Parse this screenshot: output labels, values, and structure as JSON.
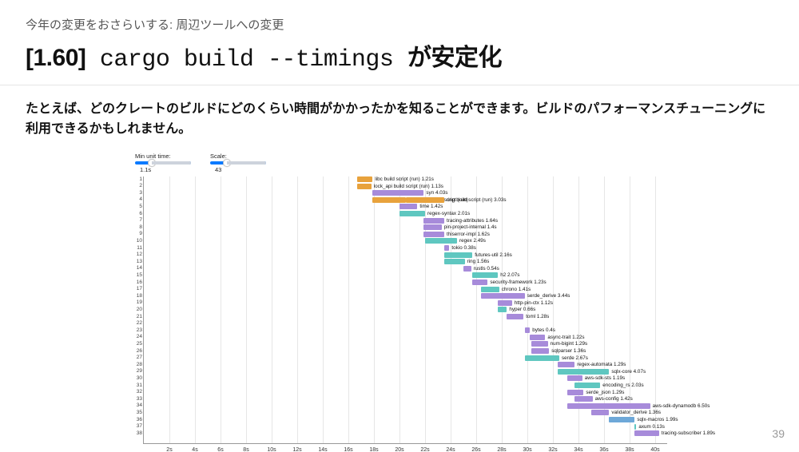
{
  "header": {
    "section": "今年の変更をおさらいする: 周辺ツールへの変更",
    "version": "[1.60]",
    "command": " cargo build --timings ",
    "suffix": "が安定化"
  },
  "lead": "たとえば、どのクレートのビルドにどのくらい時間がかかったかを知ることができます。ビルドのパフォーマンスチューニングに利用できるかもしれません。",
  "page_number": "39",
  "controls": {
    "min_unit_label": "Min unit time:",
    "min_unit_value": "1.1s",
    "scale_label": "Scale:",
    "scale_value": "43"
  },
  "colors": {
    "orange": "#e8a23c",
    "purple": "#a78bda",
    "teal": "#5fc7c0",
    "blue": "#6ea8d8",
    "grid": "#e6e6e6"
  },
  "x_axis": {
    "ticks": [
      "2s",
      "4s",
      "6s",
      "8s",
      "10s",
      "12s",
      "14s",
      "16s",
      "18s",
      "20s",
      "22s",
      "24s",
      "26s",
      "28s",
      "30s",
      "32s",
      "34s",
      "36s",
      "38s",
      "40s"
    ],
    "max": 41
  },
  "rows": [
    {
      "n": 1,
      "bars": [
        {
          "start": 16.7,
          "dur": 1.2,
          "color": "orange",
          "label": "libc build script (run) 1.21s"
        }
      ]
    },
    {
      "n": 2,
      "bars": [
        {
          "start": 16.7,
          "dur": 1.1,
          "color": "orange",
          "label": "lock_api build script (run) 1.13s"
        }
      ]
    },
    {
      "n": 3,
      "bars": [
        {
          "start": 17.9,
          "dur": 4.0,
          "color": "purple",
          "label": "syn 4.03s"
        }
      ]
    },
    {
      "n": 4,
      "bars": [
        {
          "start": 17.9,
          "dur": 2.6,
          "color": "orange",
          "label": "num-traits build script (run)"
        },
        {
          "start": 20.5,
          "dur": 3.0,
          "color": "orange",
          "label": "ring build script (run) 3.03s"
        }
      ]
    },
    {
      "n": 5,
      "bars": [
        {
          "start": 20.0,
          "dur": 1.4,
          "color": "purple",
          "label": "time 1.42s"
        }
      ]
    },
    {
      "n": 6,
      "bars": [
        {
          "start": 20.0,
          "dur": 2.0,
          "color": "teal",
          "label": "regex-syntax 2.01s"
        }
      ]
    },
    {
      "n": 7,
      "bars": [
        {
          "start": 21.9,
          "dur": 1.6,
          "color": "purple",
          "label": "tracing-attributes 1.64s"
        }
      ]
    },
    {
      "n": 8,
      "bars": [
        {
          "start": 21.9,
          "dur": 1.4,
          "color": "purple",
          "label": "pin-project-internal 1.4s"
        }
      ]
    },
    {
      "n": 9,
      "bars": [
        {
          "start": 21.9,
          "dur": 1.6,
          "color": "purple",
          "label": "thiserror-impl 1.62s"
        }
      ]
    },
    {
      "n": 10,
      "bars": [
        {
          "start": 22.0,
          "dur": 2.5,
          "color": "teal",
          "label": "regex 2.49s"
        }
      ]
    },
    {
      "n": 11,
      "bars": [
        {
          "start": 23.5,
          "dur": 0.4,
          "color": "purple",
          "label": "tokio 0.38s"
        }
      ]
    },
    {
      "n": 12,
      "bars": [
        {
          "start": 23.5,
          "dur": 2.2,
          "color": "teal",
          "label": "futures-util 2.16s"
        }
      ]
    },
    {
      "n": 13,
      "bars": [
        {
          "start": 23.5,
          "dur": 1.6,
          "color": "teal",
          "label": "ring 1.56s"
        }
      ]
    },
    {
      "n": 14,
      "bars": [
        {
          "start": 25.0,
          "dur": 0.6,
          "color": "purple",
          "label": "rustls 0.54s"
        }
      ]
    },
    {
      "n": 15,
      "bars": [
        {
          "start": 25.7,
          "dur": 2.0,
          "color": "teal",
          "label": "h2 2.07s"
        }
      ]
    },
    {
      "n": 16,
      "bars": [
        {
          "start": 25.7,
          "dur": 1.2,
          "color": "purple",
          "label": "security-framework 1.23s"
        }
      ]
    },
    {
      "n": 17,
      "bars": [
        {
          "start": 26.4,
          "dur": 1.4,
          "color": "teal",
          "label": "chrono 1.41s"
        }
      ]
    },
    {
      "n": 18,
      "bars": [
        {
          "start": 26.4,
          "dur": 3.4,
          "color": "purple",
          "label": "serde_derive 3.44s"
        }
      ]
    },
    {
      "n": 19,
      "bars": [
        {
          "start": 27.7,
          "dur": 1.1,
          "color": "purple",
          "label": "http-pin-ctx 1.12s"
        }
      ]
    },
    {
      "n": 20,
      "bars": [
        {
          "start": 27.7,
          "dur": 0.7,
          "color": "teal",
          "label": "hyper 0.66s"
        }
      ]
    },
    {
      "n": 21,
      "bars": [
        {
          "start": 28.4,
          "dur": 1.3,
          "color": "purple",
          "label": "toml 1.28s"
        }
      ]
    },
    {
      "n": 22,
      "bars": []
    },
    {
      "n": 23,
      "bars": [
        {
          "start": 29.8,
          "dur": 0.4,
          "color": "purple",
          "label": "bytes 0.4s"
        }
      ]
    },
    {
      "n": 24,
      "bars": [
        {
          "start": 30.2,
          "dur": 1.2,
          "color": "purple",
          "label": "async-trait 1.22s"
        }
      ]
    },
    {
      "n": 25,
      "bars": [
        {
          "start": 30.3,
          "dur": 1.3,
          "color": "purple",
          "label": "num-bigint 1.29s"
        }
      ]
    },
    {
      "n": 26,
      "bars": [
        {
          "start": 30.3,
          "dur": 1.4,
          "color": "purple",
          "label": "sqlparser 1.36s"
        }
      ]
    },
    {
      "n": 27,
      "bars": [
        {
          "start": 29.8,
          "dur": 2.7,
          "color": "teal",
          "label": "serde 2.67s"
        }
      ]
    },
    {
      "n": 28,
      "bars": [
        {
          "start": 32.4,
          "dur": 1.3,
          "color": "purple",
          "label": "regex-automata 1.29s"
        }
      ]
    },
    {
      "n": 29,
      "bars": [
        {
          "start": 32.4,
          "dur": 4.0,
          "color": "teal",
          "label": "sqlx-core 4.07s"
        }
      ]
    },
    {
      "n": 30,
      "bars": [
        {
          "start": 33.1,
          "dur": 1.2,
          "color": "purple",
          "label": "aws-sdk-sts 1.19s"
        }
      ]
    },
    {
      "n": 31,
      "bars": [
        {
          "start": 33.7,
          "dur": 2.0,
          "color": "teal",
          "label": "encoding_rs 2.03s"
        }
      ]
    },
    {
      "n": 32,
      "bars": [
        {
          "start": 33.1,
          "dur": 1.3,
          "color": "purple",
          "label": "serde_json 1.29s"
        }
      ]
    },
    {
      "n": 33,
      "bars": [
        {
          "start": 33.7,
          "dur": 1.4,
          "color": "purple",
          "label": "aws-config 1.42s"
        }
      ]
    },
    {
      "n": 34,
      "bars": [
        {
          "start": 33.1,
          "dur": 6.5,
          "color": "purple",
          "label": "aws-sdk-dynamodb 6.50s"
        }
      ]
    },
    {
      "n": 35,
      "bars": [
        {
          "start": 35.0,
          "dur": 1.4,
          "color": "purple",
          "label": "validator_derive 1.36s"
        }
      ]
    },
    {
      "n": 36,
      "bars": [
        {
          "start": 36.4,
          "dur": 2.0,
          "color": "blue",
          "label": "sqlx-macros 1.99s"
        }
      ]
    },
    {
      "n": 37,
      "bars": [
        {
          "start": 38.4,
          "dur": 0.1,
          "color": "teal",
          "label": "axum 0.13s"
        }
      ]
    },
    {
      "n": 38,
      "bars": [
        {
          "start": 38.4,
          "dur": 1.9,
          "color": "purple",
          "label": "tracing-subscriber 1.89s"
        }
      ]
    }
  ]
}
